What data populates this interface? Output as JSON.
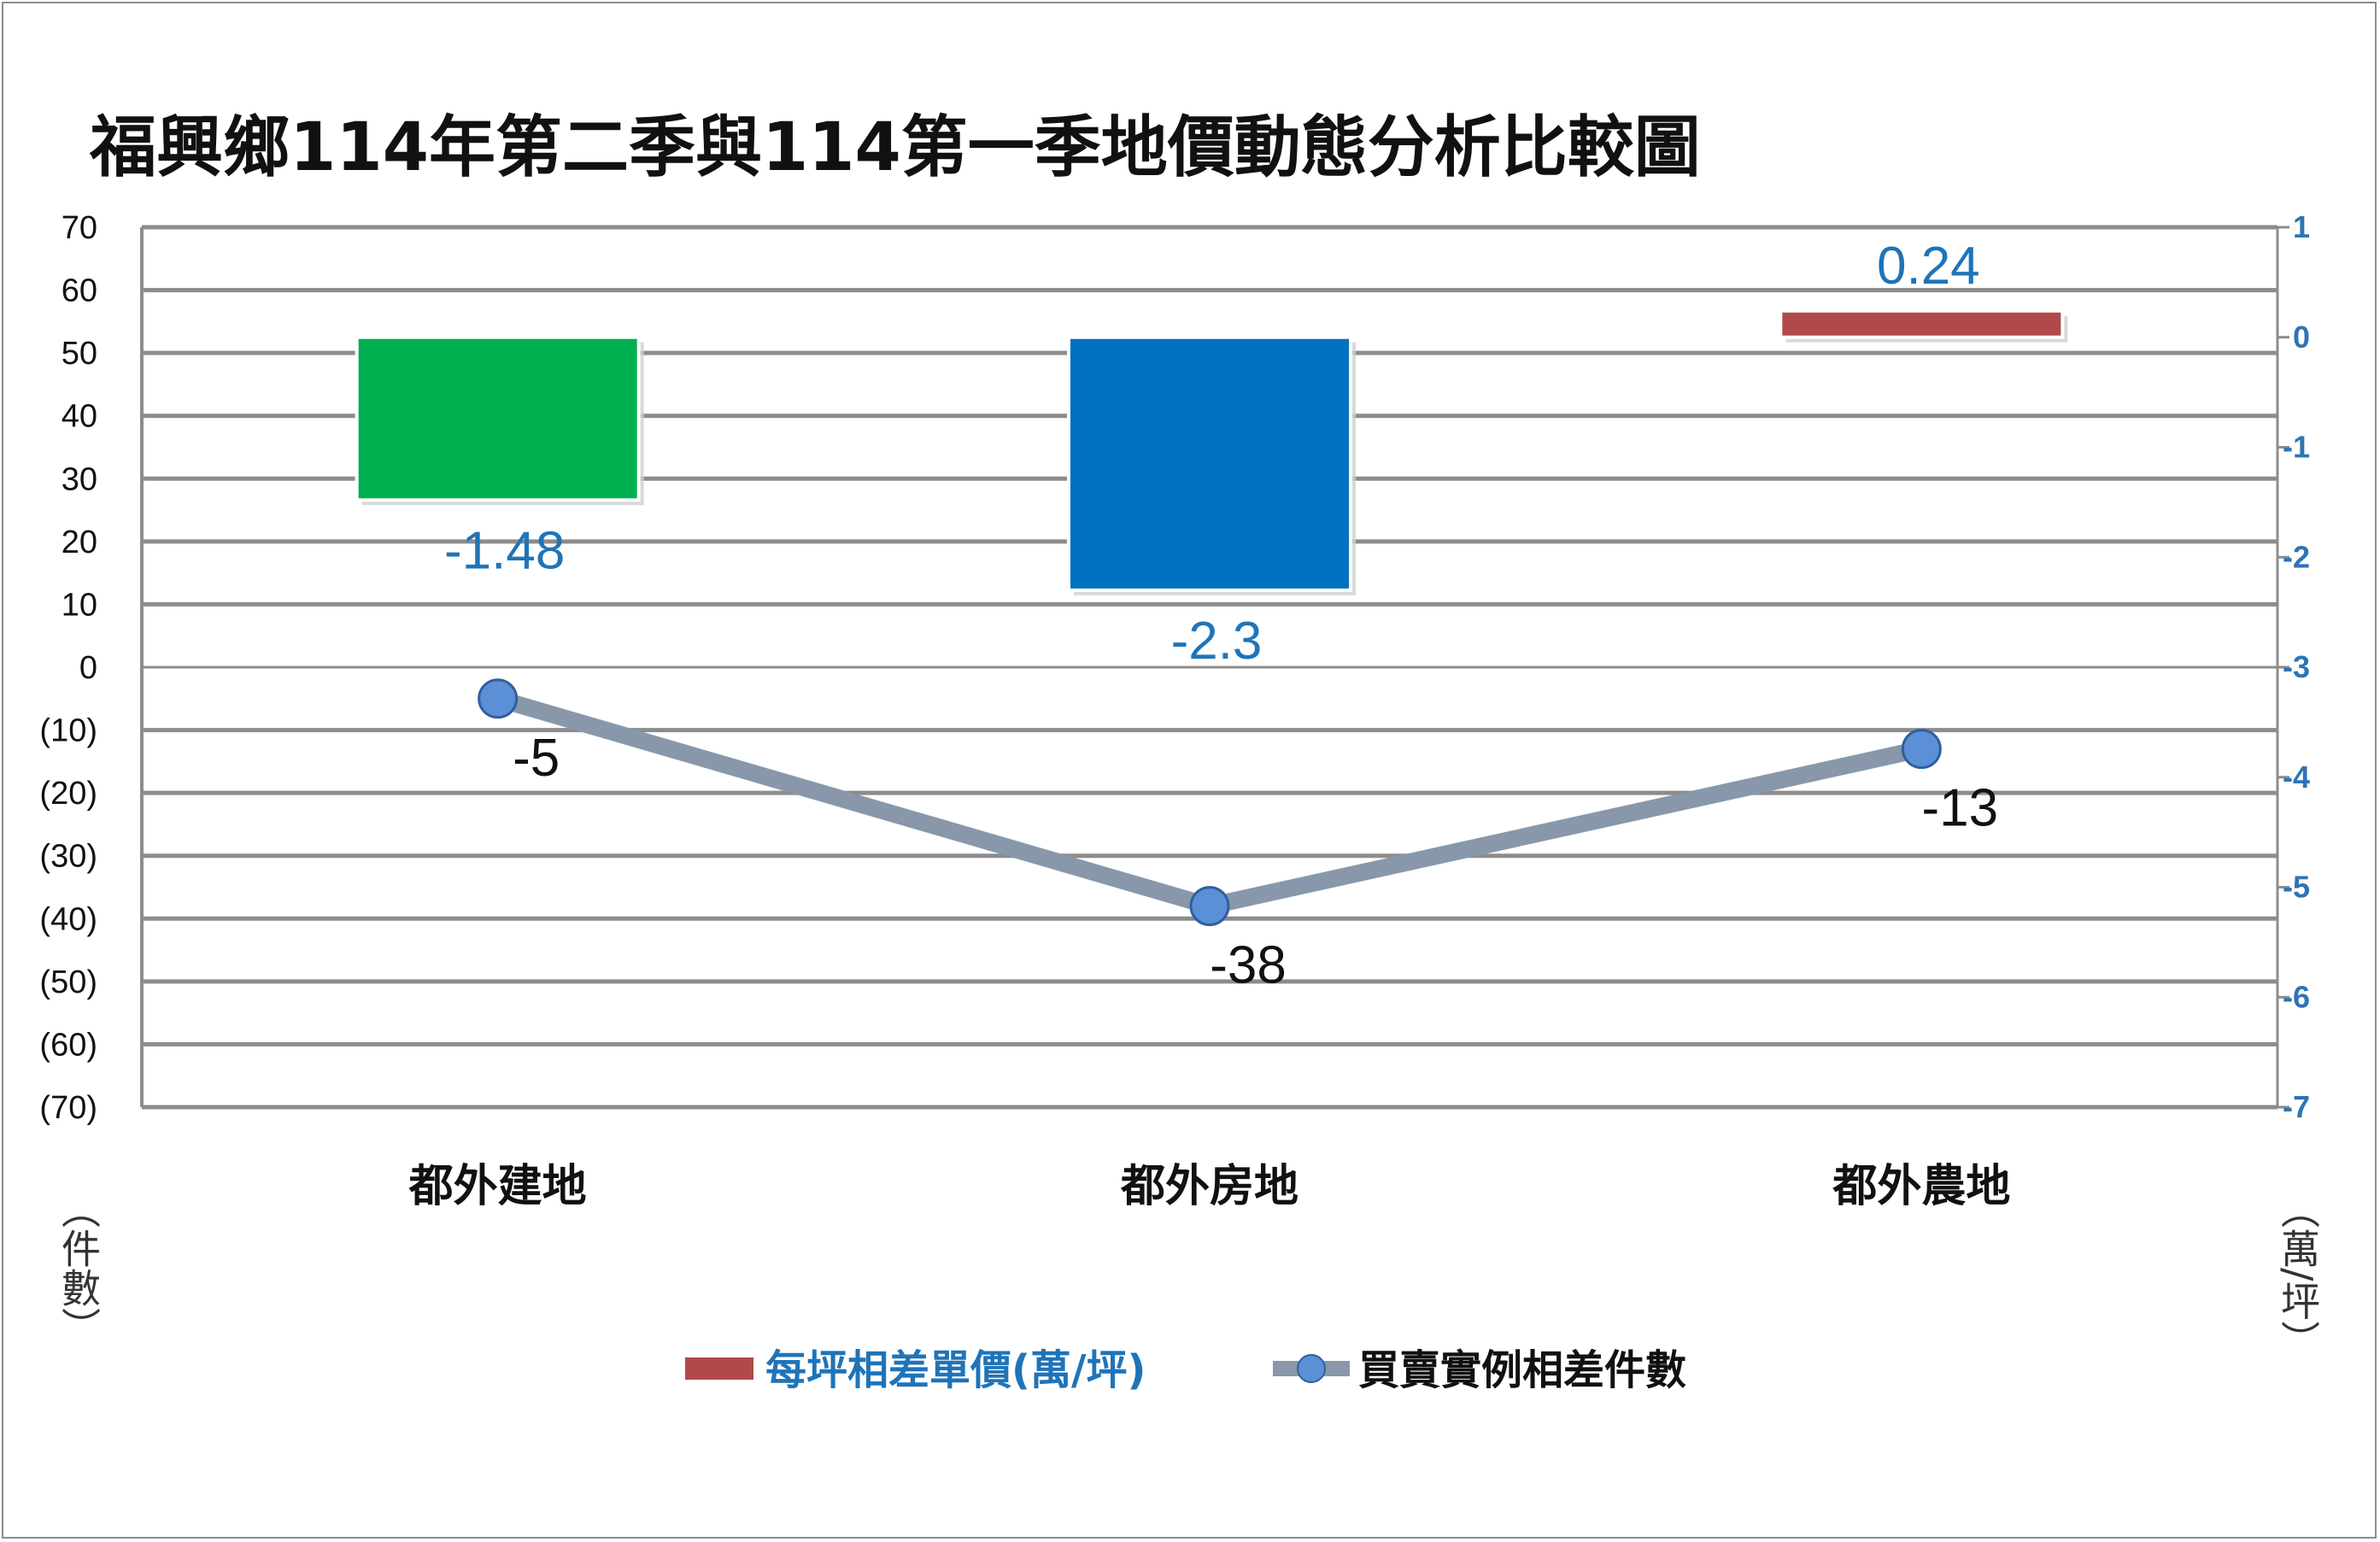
{
  "chart_data": {
    "type": "bar",
    "title": "福興鄉114年第二季與114第一季地價動態分析比較圖",
    "categories": [
      "都外建地",
      "都外房地",
      "都外農地"
    ],
    "y_left": {
      "label": "（件數）",
      "ylim": [
        -70,
        70
      ],
      "ticks": [
        70,
        60,
        50,
        40,
        30,
        20,
        10,
        0,
        -10,
        -20,
        -30,
        -40,
        -50,
        -60,
        -70
      ],
      "tick_labels": [
        "70",
        "60",
        "50",
        "40",
        "30",
        "20",
        "10",
        "0",
        "(10)",
        "(20)",
        "(30)",
        "(40)",
        "(50)",
        "(60)",
        "(70)"
      ]
    },
    "y_right": {
      "label": "（萬/坪）",
      "ylim": [
        -7,
        1
      ],
      "ticks": [
        1,
        0,
        -1,
        -2,
        -3,
        -4,
        -5,
        -6,
        -7
      ],
      "tick_labels": [
        "1",
        "0",
        "-1",
        "-2",
        "-3",
        "-4",
        "-5",
        "-6",
        "-7"
      ]
    },
    "series": [
      {
        "name": "每坪相差單價(萬/坪)",
        "kind": "bar",
        "axis": "right",
        "values": [
          -1.48,
          -2.3,
          0.24
        ],
        "labels": [
          "-1.48",
          "-2.3",
          "0.24"
        ],
        "colors": [
          "#00b050",
          "#0070c0",
          "#b04a4a"
        ]
      },
      {
        "name": "買賣實例相差件數",
        "kind": "line",
        "axis": "left",
        "values": [
          -5,
          -38,
          -13
        ],
        "labels": [
          "-5",
          "-38",
          "-13"
        ],
        "line_color": "#8898aa",
        "marker_color": "#5b8fd6"
      }
    ],
    "grid": true,
    "legend": "bottom"
  }
}
